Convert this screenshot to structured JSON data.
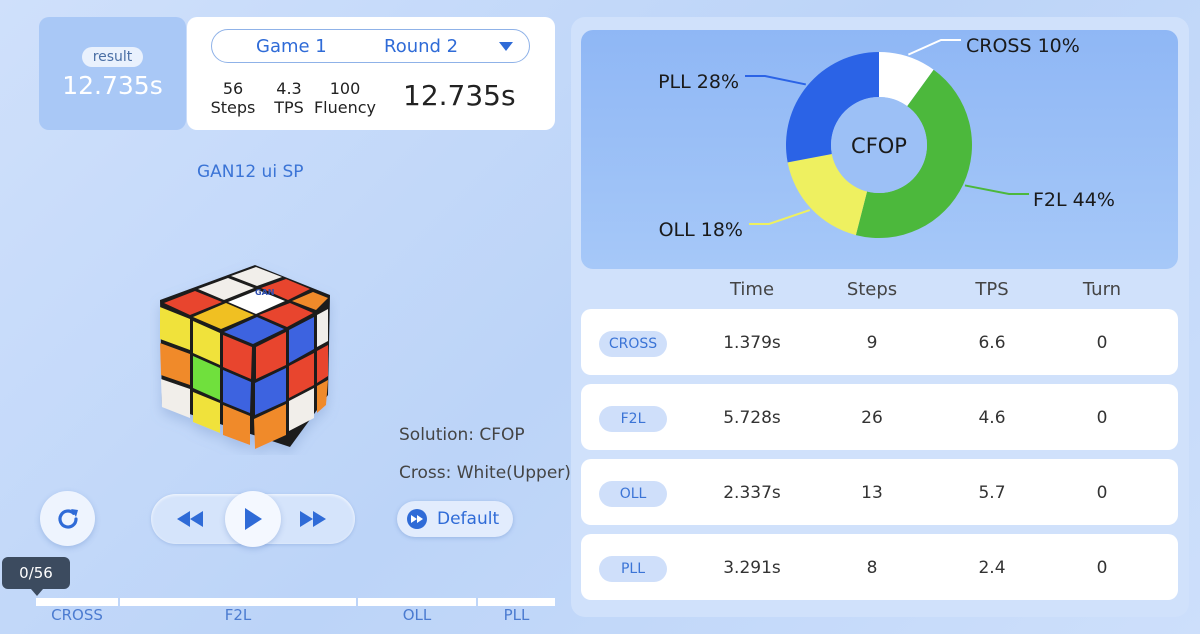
{
  "result": {
    "label": "result",
    "time": "12.735s"
  },
  "game": {
    "game_label": "Game 1",
    "round_label": "Round 2",
    "steps_value": "56",
    "steps_label": "Steps",
    "tps_value": "4.3",
    "tps_label": "TPS",
    "fluency_value": "100",
    "fluency_label": "Fluency",
    "time": "12.735s"
  },
  "cube_name": "GAN12 ui SP",
  "cube_logo_text": "GAN",
  "solution": {
    "method": "Solution: CFOP",
    "cross": "Cross: White(Upper)"
  },
  "controls": {
    "default_label": "Default"
  },
  "progress": {
    "current": "0/56",
    "phases": [
      {
        "label": "CROSS",
        "fraction": 0.16
      },
      {
        "label": "F2L",
        "fraction": 0.46
      },
      {
        "label": "OLL",
        "fraction": 0.23
      },
      {
        "label": "PLL",
        "fraction": 0.15
      }
    ]
  },
  "chart_data": {
    "type": "pie",
    "center_label": "CFOP",
    "slices": [
      {
        "label": "CROSS 10%",
        "value": 10,
        "color": "#ffffff"
      },
      {
        "label": "F2L 44%",
        "value": 44,
        "color": "#4cb83c"
      },
      {
        "label": "OLL 18%",
        "value": 18,
        "color": "#eef060"
      },
      {
        "label": "PLL 28%",
        "value": 28,
        "color": "#2b63e6"
      }
    ]
  },
  "table": {
    "headers": [
      "Time",
      "Steps",
      "TPS",
      "Turn"
    ],
    "rows": [
      {
        "stage": "CROSS",
        "time": "1.379s",
        "steps": "9",
        "tps": "6.6",
        "turn": "0"
      },
      {
        "stage": "F2L",
        "time": "5.728s",
        "steps": "26",
        "tps": "4.6",
        "turn": "0"
      },
      {
        "stage": "OLL",
        "time": "2.337s",
        "steps": "13",
        "tps": "5.7",
        "turn": "0"
      },
      {
        "stage": "PLL",
        "time": "3.291s",
        "steps": "8",
        "tps": "2.4",
        "turn": "0"
      }
    ]
  },
  "colors": {
    "accent": "#2f6bd7",
    "panel_bg": "#d0e1fb",
    "result_bg": "#a9c8f6"
  }
}
